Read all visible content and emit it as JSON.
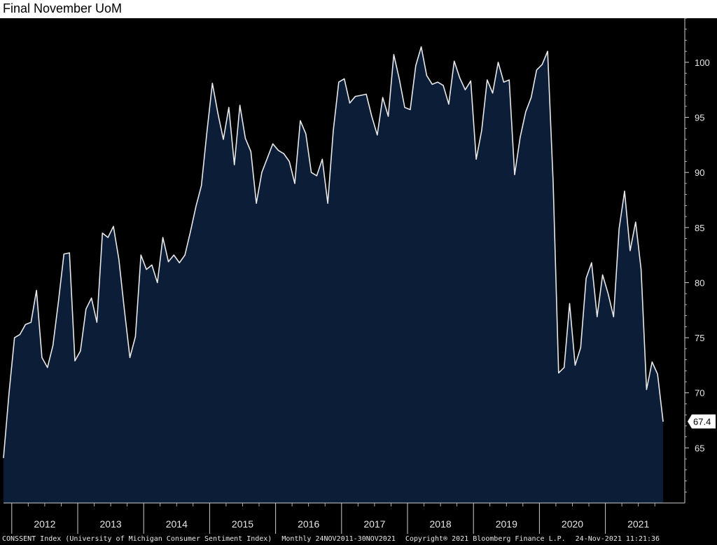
{
  "title": "Final November UoM",
  "footer": {
    "series": "CONSSENT Index (University of Michigan Consumer Sentiment Index)",
    "period": "Monthly 24NOV2011-30NOV2021",
    "copyright": "Copyright® 2021 Bloomberg Finance L.P.",
    "timestamp": "24-Nov-2021 11:21:36"
  },
  "colors": {
    "background": "#000000",
    "area_fill": "#0c1d38",
    "line": "#e8e8e8",
    "axis": "#cfcfcf",
    "label_box": "#ffffff",
    "label_text": "#000000"
  },
  "chart_data": {
    "type": "area",
    "title": "Final November UoM",
    "xlabel": "",
    "ylabel": "",
    "ylim": [
      60,
      104
    ],
    "yticks": [
      65,
      70,
      75,
      80,
      85,
      90,
      95,
      100
    ],
    "year_labels": [
      "2012",
      "2013",
      "2014",
      "2015",
      "2016",
      "2017",
      "2018",
      "2019",
      "2020",
      "2021"
    ],
    "last_value_label": "67.4",
    "series": [
      {
        "start": "2011-11",
        "values": [
          64.1,
          69.9,
          75.0,
          75.3,
          76.2,
          76.4,
          79.3,
          73.2,
          72.3,
          74.3,
          78.3,
          82.6,
          82.7,
          72.9,
          73.8,
          77.6,
          78.6,
          76.4,
          84.5,
          84.1,
          85.1,
          82.1,
          77.5,
          73.2,
          75.1,
          82.5,
          81.2,
          81.6,
          80.0,
          84.1,
          81.9,
          82.5,
          81.8,
          82.5,
          84.6,
          86.9,
          88.8,
          93.6,
          98.1,
          95.4,
          93.0,
          95.9,
          90.7,
          96.1,
          93.1,
          91.9,
          87.2,
          90.0,
          91.3,
          92.6,
          92.0,
          91.7,
          91.0,
          89.0,
          94.7,
          93.5,
          90.0,
          89.7,
          91.2,
          87.2,
          93.8,
          98.2,
          98.5,
          96.3,
          96.9,
          97.0,
          97.1,
          95.1,
          93.4,
          96.8,
          95.1,
          100.7,
          98.5,
          95.9,
          95.7,
          99.7,
          101.4,
          98.8,
          98.0,
          98.2,
          97.9,
          96.2,
          100.1,
          98.6,
          97.5,
          98.3,
          91.2,
          93.8,
          98.4,
          97.2,
          100.0,
          98.2,
          98.4,
          89.8,
          93.2,
          95.5,
          96.8,
          99.3,
          99.8,
          101.0,
          89.1,
          71.8,
          72.3,
          78.1,
          72.5,
          74.1,
          80.4,
          81.8,
          76.9,
          80.7,
          79.0,
          76.9,
          84.9,
          88.3,
          82.9,
          85.5,
          81.2,
          70.3,
          72.8,
          71.7,
          67.4
        ]
      }
    ]
  }
}
